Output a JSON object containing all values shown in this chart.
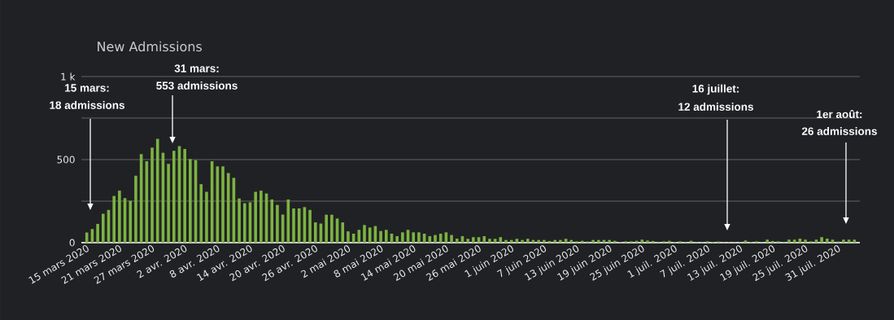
{
  "chart_data": {
    "type": "bar",
    "title": "New Admissions",
    "x": [
      "2020-03-15",
      "2020-03-16",
      "2020-03-17",
      "2020-03-18",
      "2020-03-19",
      "2020-03-20",
      "2020-03-21",
      "2020-03-22",
      "2020-03-23",
      "2020-03-24",
      "2020-03-25",
      "2020-03-26",
      "2020-03-27",
      "2020-03-28",
      "2020-03-29",
      "2020-03-30",
      "2020-03-31",
      "2020-04-01",
      "2020-04-02",
      "2020-04-03",
      "2020-04-04",
      "2020-04-05",
      "2020-04-06",
      "2020-04-07",
      "2020-04-08",
      "2020-04-09",
      "2020-04-10",
      "2020-04-11",
      "2020-04-12",
      "2020-04-13",
      "2020-04-14",
      "2020-04-15",
      "2020-04-16",
      "2020-04-17",
      "2020-04-18",
      "2020-04-19",
      "2020-04-20",
      "2020-04-21",
      "2020-04-22",
      "2020-04-23",
      "2020-04-24",
      "2020-04-25",
      "2020-04-26",
      "2020-04-27",
      "2020-04-28",
      "2020-04-29",
      "2020-04-30",
      "2020-05-01",
      "2020-05-02",
      "2020-05-03",
      "2020-05-04",
      "2020-05-05",
      "2020-05-06",
      "2020-05-07",
      "2020-05-08",
      "2020-05-09",
      "2020-05-10",
      "2020-05-11",
      "2020-05-12",
      "2020-05-13",
      "2020-05-14",
      "2020-05-15",
      "2020-05-16",
      "2020-05-17",
      "2020-05-18",
      "2020-05-19",
      "2020-05-20",
      "2020-05-21",
      "2020-05-22",
      "2020-05-23",
      "2020-05-24",
      "2020-05-25",
      "2020-05-26",
      "2020-05-27",
      "2020-05-28",
      "2020-05-29",
      "2020-05-30",
      "2020-05-31",
      "2020-06-01",
      "2020-06-02",
      "2020-06-03",
      "2020-06-04",
      "2020-06-05",
      "2020-06-06",
      "2020-06-07",
      "2020-06-08",
      "2020-06-09",
      "2020-06-10",
      "2020-06-11",
      "2020-06-12",
      "2020-06-13",
      "2020-06-14",
      "2020-06-15",
      "2020-06-16",
      "2020-06-17",
      "2020-06-18",
      "2020-06-19",
      "2020-06-20",
      "2020-06-21",
      "2020-06-22",
      "2020-06-23",
      "2020-06-24",
      "2020-06-25",
      "2020-06-26",
      "2020-06-27",
      "2020-06-28",
      "2020-06-29",
      "2020-06-30",
      "2020-07-01",
      "2020-07-02",
      "2020-07-03",
      "2020-07-04",
      "2020-07-05",
      "2020-07-06",
      "2020-07-07",
      "2020-07-08",
      "2020-07-09",
      "2020-07-10",
      "2020-07-11",
      "2020-07-12",
      "2020-07-13",
      "2020-07-14",
      "2020-07-15",
      "2020-07-16",
      "2020-07-17",
      "2020-07-18",
      "2020-07-19",
      "2020-07-20",
      "2020-07-21",
      "2020-07-22",
      "2020-07-23",
      "2020-07-24",
      "2020-07-25",
      "2020-07-26",
      "2020-07-27",
      "2020-07-28",
      "2020-07-29",
      "2020-07-30",
      "2020-07-31",
      "2020-08-01",
      "2020-08-02",
      "2020-08-03"
    ],
    "values": [
      61,
      82,
      113,
      174,
      197,
      281,
      313,
      268,
      252,
      403,
      533,
      490,
      572,
      625,
      541,
      474,
      553,
      581,
      564,
      503,
      497,
      352,
      306,
      490,
      459,
      459,
      419,
      390,
      266,
      237,
      243,
      306,
      313,
      296,
      260,
      227,
      169,
      260,
      206,
      206,
      214,
      197,
      122,
      115,
      168,
      168,
      145,
      122,
      68,
      54,
      77,
      106,
      91,
      100,
      70,
      77,
      54,
      39,
      62,
      77,
      62,
      62,
      54,
      39,
      46,
      54,
      62,
      46,
      24,
      39,
      23,
      33,
      33,
      39,
      23,
      23,
      33,
      16,
      16,
      23,
      16,
      23,
      16,
      16,
      16,
      10,
      16,
      16,
      23,
      16,
      8,
      11,
      7,
      16,
      16,
      16,
      16,
      11,
      5,
      8,
      8,
      11,
      18,
      13,
      10,
      3,
      8,
      11,
      5,
      8,
      3,
      11,
      3,
      3,
      8,
      5,
      7,
      3,
      3,
      3,
      3,
      13,
      5,
      8,
      3,
      18,
      10,
      8,
      3,
      18,
      18,
      24,
      18,
      8,
      18,
      33,
      24,
      18,
      7,
      18,
      18,
      18
    ],
    "color": "#7cb342",
    "xlim": [
      "2020-03-14",
      "2020-08-04"
    ],
    "xticks": [
      {
        "value": "2020-03-15",
        "label": "15 mars 2020"
      },
      {
        "value": "2020-03-21",
        "label": "21 mars 2020"
      },
      {
        "value": "2020-03-27",
        "label": "27 mars 2020"
      },
      {
        "value": "2020-04-02",
        "label": "2 avr. 2020"
      },
      {
        "value": "2020-04-08",
        "label": "8 avr. 2020"
      },
      {
        "value": "2020-04-14",
        "label": "14 avr. 2020"
      },
      {
        "value": "2020-04-20",
        "label": "20 avr. 2020"
      },
      {
        "value": "2020-04-26",
        "label": "26 avr. 2020"
      },
      {
        "value": "2020-05-02",
        "label": "2 mai 2020"
      },
      {
        "value": "2020-05-08",
        "label": "8 mai 2020"
      },
      {
        "value": "2020-05-14",
        "label": "14 mai 2020"
      },
      {
        "value": "2020-05-20",
        "label": "20 mai 2020"
      },
      {
        "value": "2020-05-26",
        "label": "26 mai 2020"
      },
      {
        "value": "2020-06-01",
        "label": "1 juin 2020"
      },
      {
        "value": "2020-06-07",
        "label": "7 juin 2020"
      },
      {
        "value": "2020-06-13",
        "label": "13 juin 2020"
      },
      {
        "value": "2020-06-19",
        "label": "19 juin 2020"
      },
      {
        "value": "2020-06-25",
        "label": "25 juin 2020"
      },
      {
        "value": "2020-07-01",
        "label": "1 juil. 2020"
      },
      {
        "value": "2020-07-07",
        "label": "7 juil. 2020"
      },
      {
        "value": "2020-07-13",
        "label": "13 juil. 2020"
      },
      {
        "value": "2020-07-19",
        "label": "19 juil. 2020"
      },
      {
        "value": "2020-07-25",
        "label": "25 juil. 2020"
      },
      {
        "value": "2020-07-31",
        "label": "31 juil. 2020"
      }
    ],
    "ylim": [
      0,
      1000
    ],
    "yticks": [
      {
        "value": 0,
        "label": "0"
      },
      {
        "value": 250,
        "label": null
      },
      {
        "value": 500,
        "label": "500"
      },
      {
        "value": 750,
        "label": null
      },
      {
        "value": 1000,
        "label": "1 k"
      }
    ],
    "grid": "y",
    "annotations": [
      "15 mars:",
      "18 admissions",
      "31 mars:",
      "553 admissions",
      "16 juillet:",
      "12 admissions",
      "1er août:",
      "26 admissions"
    ]
  }
}
